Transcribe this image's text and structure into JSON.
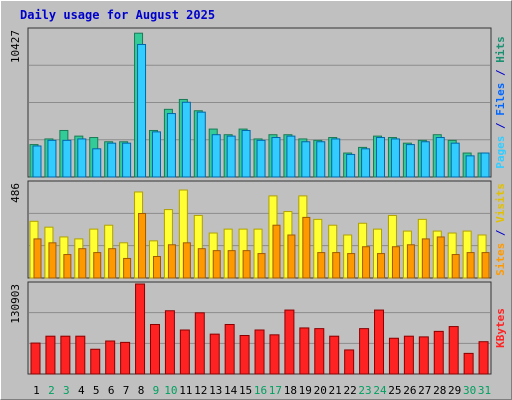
{
  "title": "Daily usage for August 2025",
  "colors": {
    "hits": "#33cc99",
    "hits_edge": "#1a7a55",
    "files": "#33ccff",
    "files_edge": "#0066aa",
    "pages": "#33ccff",
    "visits": "#ffff33",
    "sites": "#ff9900",
    "kbytes": "#ff2222",
    "weekend_day": "#00a060",
    "weekday_day": "#000000"
  },
  "chart_data": [
    {
      "type": "bar",
      "title": "",
      "ylabel": "Pages / Files / Hits",
      "ylabel_parts": [
        {
          "text": "Pages",
          "color": "#33ccff"
        },
        {
          "text": " / ",
          "color": "#0000cc"
        },
        {
          "text": "Files",
          "color": "#0066ff"
        },
        {
          "text": " / ",
          "color": "#0000cc"
        },
        {
          "text": "Hits",
          "color": "#1a9070"
        }
      ],
      "ymax_label": "10427",
      "ylim": [
        0,
        10427
      ],
      "categories": [
        "1",
        "2",
        "3",
        "4",
        "5",
        "6",
        "7",
        "8",
        "9",
        "10",
        "11",
        "12",
        "13",
        "14",
        "15",
        "16",
        "17",
        "18",
        "19",
        "20",
        "21",
        "22",
        "23",
        "24",
        "25",
        "26",
        "27",
        "28",
        "29",
        "30",
        "31"
      ],
      "series": [
        {
          "name": "Hits",
          "values": [
            2300,
            2700,
            3300,
            2900,
            2800,
            2500,
            2500,
            10200,
            3300,
            4800,
            5500,
            4700,
            3400,
            3000,
            3400,
            2700,
            3000,
            3000,
            2700,
            2600,
            2800,
            1700,
            2100,
            2900,
            2800,
            2400,
            2600,
            3000,
            2600,
            1700,
            1700
          ]
        },
        {
          "name": "Files",
          "values": [
            2200,
            2600,
            2600,
            2700,
            2000,
            2400,
            2400,
            9400,
            3200,
            4500,
            5300,
            4600,
            3000,
            2900,
            3300,
            2600,
            2800,
            2900,
            2500,
            2500,
            2700,
            1600,
            2000,
            2800,
            2700,
            2300,
            2500,
            2800,
            2400,
            1500,
            1700
          ]
        },
        {
          "name": "Pages",
          "values": [
            2200,
            2600,
            2600,
            2700,
            2000,
            2400,
            2400,
            9400,
            3200,
            4500,
            5300,
            4600,
            3000,
            2900,
            3300,
            2600,
            2800,
            2900,
            2500,
            2500,
            2700,
            1600,
            2000,
            2800,
            2700,
            2300,
            2500,
            2800,
            2400,
            1500,
            1700
          ]
        }
      ]
    },
    {
      "type": "bar",
      "title": "",
      "ylabel": "Sites / Visits",
      "ylabel_parts": [
        {
          "text": "Sites",
          "color": "#ff9900"
        },
        {
          "text": " / ",
          "color": "#0000cc"
        },
        {
          "text": "Visits",
          "color": "#e0c000"
        }
      ],
      "ymax_label": "486",
      "ylim": [
        0,
        486
      ],
      "categories": [
        "1",
        "2",
        "3",
        "4",
        "5",
        "6",
        "7",
        "8",
        "9",
        "10",
        "11",
        "12",
        "13",
        "14",
        "15",
        "16",
        "17",
        "18",
        "19",
        "20",
        "21",
        "22",
        "23",
        "24",
        "25",
        "26",
        "27",
        "28",
        "29",
        "30",
        "31"
      ],
      "series": [
        {
          "name": "Visits",
          "values": [
            290,
            260,
            210,
            200,
            250,
            270,
            180,
            440,
            190,
            350,
            450,
            320,
            230,
            250,
            250,
            250,
            420,
            340,
            420,
            300,
            270,
            220,
            280,
            250,
            320,
            240,
            300,
            240,
            230,
            240,
            220
          ]
        },
        {
          "name": "Sites",
          "values": [
            200,
            180,
            120,
            150,
            130,
            150,
            100,
            330,
            110,
            170,
            180,
            150,
            140,
            140,
            140,
            125,
            270,
            220,
            310,
            130,
            130,
            125,
            160,
            125,
            160,
            170,
            200,
            210,
            120,
            130,
            130
          ]
        }
      ]
    },
    {
      "type": "bar",
      "title": "",
      "ylabel": "KBytes",
      "ylabel_parts": [
        {
          "text": "KBytes",
          "color": "#ff2222"
        }
      ],
      "ymax_label": "130903",
      "ylim": [
        0,
        130903
      ],
      "categories": [
        "1",
        "2",
        "3",
        "4",
        "5",
        "6",
        "7",
        "8",
        "9",
        "10",
        "11",
        "12",
        "13",
        "14",
        "15",
        "16",
        "17",
        "18",
        "19",
        "20",
        "21",
        "22",
        "23",
        "24",
        "25",
        "26",
        "27",
        "28",
        "29",
        "30",
        "31"
      ],
      "series": [
        {
          "name": "KBytes",
          "values": [
            45000,
            55000,
            55000,
            55000,
            36000,
            48000,
            46000,
            130903,
            72000,
            92000,
            64000,
            89000,
            58000,
            72000,
            56000,
            64000,
            57000,
            93000,
            67000,
            66000,
            55000,
            35000,
            66000,
            93000,
            52000,
            55000,
            54000,
            62000,
            69000,
            30000,
            47000
          ]
        }
      ]
    }
  ]
}
